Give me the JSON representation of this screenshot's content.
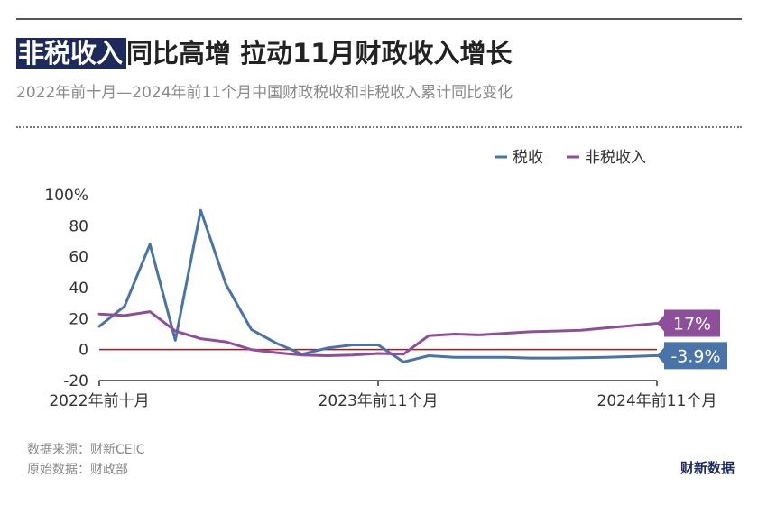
{
  "header": {
    "title_highlight": "非税收入",
    "title_rest": "同比高增 拉动11月财政收入增长",
    "subtitle": "2022年前十月—2024年前11个月中国财政税收和非税收入累计同比变化"
  },
  "footer": {
    "source": "数据来源：财新CEIC",
    "original": "原始数据：财政部",
    "brand": "财新数据"
  },
  "colors": {
    "tax": "#4a74a8",
    "nontax": "#8e4f9a",
    "zero_line": "#a11e1e"
  },
  "chart_data": {
    "type": "line",
    "title": "",
    "xlabel": "",
    "ylabel": "",
    "ylim": [
      -20,
      100
    ],
    "yticks": [
      -20,
      0,
      20,
      40,
      60,
      80,
      100
    ],
    "ytick_labels": [
      "-20",
      "0",
      "20",
      "40",
      "60",
      "80",
      "100%"
    ],
    "x_tick_labels": [
      {
        "index": 0,
        "label": "2022年前十月"
      },
      {
        "index": 11,
        "label": "2023年前11个月"
      },
      {
        "index": 22,
        "label": "2024年前11个月"
      }
    ],
    "legend_position": "top-right",
    "series": [
      {
        "name": "税收",
        "values": [
          15,
          28,
          68,
          6,
          90,
          42,
          13,
          4,
          -3,
          1,
          3,
          3,
          -8,
          -4,
          -5,
          -5,
          -5,
          -5.5,
          -5.5,
          -5.3,
          -5,
          -4.5,
          -3.9
        ],
        "end_label": "-3.9%"
      },
      {
        "name": "非税收入",
        "values": [
          23,
          22,
          24.5,
          12,
          7,
          5,
          0,
          -2,
          -3.5,
          -4,
          -3.5,
          -2.5,
          -3,
          9,
          10,
          9.5,
          10.5,
          11.5,
          12,
          12.5,
          14,
          15.5,
          17
        ],
        "end_label": "17%"
      }
    ],
    "reference_line": 0
  }
}
